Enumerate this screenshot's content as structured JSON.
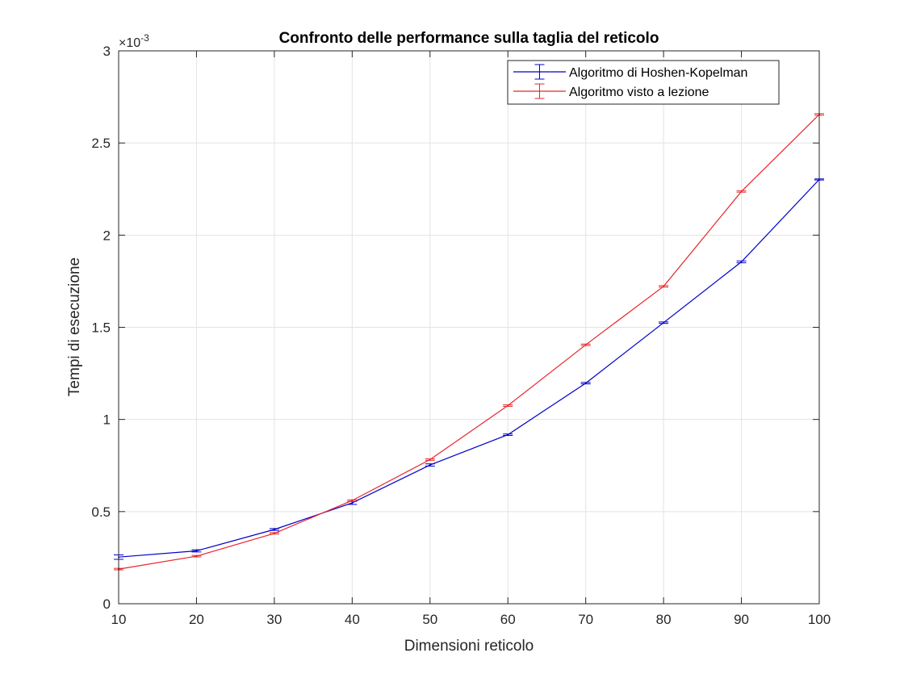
{
  "chart_data": {
    "type": "line",
    "title": "Confronto delle performance sulla taglia del reticolo",
    "xlabel": "Dimensioni reticolo",
    "ylabel": "Tempi di esecuzione",
    "y_exponent_label": "×10",
    "y_exponent_power": "-3",
    "x": [
      10,
      20,
      30,
      40,
      50,
      60,
      70,
      80,
      90,
      100
    ],
    "xlim": [
      10,
      100
    ],
    "ylim": [
      0,
      3
    ],
    "y_scale_factor": 0.001,
    "xticks": [
      "10",
      "20",
      "30",
      "40",
      "50",
      "60",
      "70",
      "80",
      "90",
      "100"
    ],
    "yticks": [
      "0",
      "0.5",
      "1",
      "1.5",
      "2",
      "2.5",
      "3"
    ],
    "grid": true,
    "legend_position": "top-right",
    "series": [
      {
        "name": "Algoritmo di Hoshen-Kopelman",
        "color": "#0000cc",
        "values": [
          0.253,
          0.287,
          0.403,
          0.547,
          0.753,
          0.917,
          1.197,
          1.525,
          1.855,
          2.302
        ],
        "errors": [
          0.012,
          0.006,
          0.005,
          0.008,
          0.006,
          0.004,
          0.004,
          0.004,
          0.005,
          0.003
        ]
      },
      {
        "name": "Algoritmo visto a lezione",
        "color": "#e8262a",
        "values": [
          0.188,
          0.258,
          0.382,
          0.56,
          0.782,
          1.075,
          1.405,
          1.722,
          2.237,
          2.655
        ],
        "errors": [
          0.004,
          0.004,
          0.004,
          0.004,
          0.004,
          0.004,
          0.004,
          0.004,
          0.004,
          0.004
        ]
      }
    ]
  }
}
